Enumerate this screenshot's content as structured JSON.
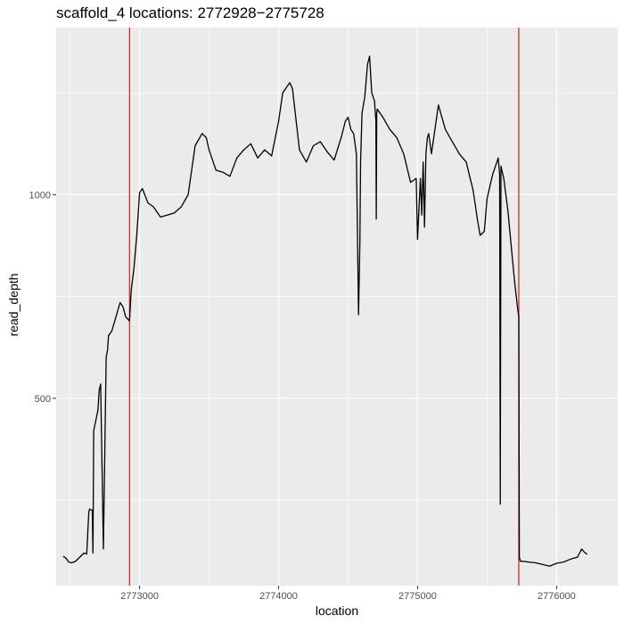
{
  "chart_data": {
    "type": "line",
    "title": "scaffold_4 locations: 2772928−2775728",
    "xlabel": "location",
    "ylabel": "read_depth",
    "xlim": [
      2772400,
      2776440
    ],
    "ylim": [
      40,
      1410
    ],
    "x_ticks": [
      2773000,
      2774000,
      2775000,
      2776000
    ],
    "x_tick_labels": [
      "2773000",
      "2774000",
      "2775000",
      "2776000"
    ],
    "y_ticks": [
      500,
      1000
    ],
    "y_tick_labels": [
      "500",
      "1000"
    ],
    "grid": true,
    "background": "#ebebeb",
    "line_color": "#000000",
    "vline_color": "#d62728",
    "vlines": [
      2772928,
      2775728
    ],
    "series": [
      {
        "x": [
          2772450,
          2772470,
          2772490,
          2772510,
          2772540,
          2772570,
          2772600,
          2772620,
          2772635,
          2772640,
          2772660,
          2772665,
          2772670,
          2772700,
          2772710,
          2772720,
          2772740,
          2772760,
          2772770,
          2772774,
          2772777,
          2772780,
          2772800,
          2772830,
          2772860,
          2772880,
          2772900,
          2772928,
          2772940,
          2772960,
          2772980,
          2773000,
          2773020,
          2773060,
          2773100,
          2773150,
          2773200,
          2773250,
          2773300,
          2773350,
          2773400,
          2773450,
          2773480,
          2773500,
          2773550,
          2773600,
          2773650,
          2773700,
          2773750,
          2773800,
          2773850,
          2773900,
          2773950,
          2774000,
          2774030,
          2774060,
          2774080,
          2774100,
          2774150,
          2774200,
          2774250,
          2774300,
          2774350,
          2774400,
          2774450,
          2774480,
          2774500,
          2774520,
          2774540,
          2774560,
          2774575,
          2774585,
          2774590,
          2774600,
          2774620,
          2774640,
          2774655,
          2774670,
          2774690,
          2774700,
          2774703,
          2774706,
          2774710,
          2774750,
          2774800,
          2774850,
          2774900,
          2774950,
          2774990,
          2775000,
          2775020,
          2775030,
          2775040,
          2775050,
          2775060,
          2775070,
          2775080,
          2775100,
          2775150,
          2775200,
          2775250,
          2775300,
          2775350,
          2775400,
          2775430,
          2775450,
          2775480,
          2775500,
          2775520,
          2775540,
          2775560,
          2775580,
          2775590,
          2775595,
          2775600,
          2775620,
          2775650,
          2775680,
          2775700,
          2775720,
          2775728,
          2775732,
          2775740,
          2775760,
          2775800,
          2775850,
          2775900,
          2775950,
          2776000,
          2776050,
          2776100,
          2776150,
          2776180,
          2776200,
          2776220
        ],
        "y": [
          112,
          108,
          98,
          96,
          100,
          110,
          120,
          118,
          220,
          228,
          225,
          120,
          420,
          470,
          520,
          535,
          130,
          600,
          620,
          640,
          655,
          655,
          665,
          700,
          735,
          725,
          700,
          690,
          765,
          820,
          900,
          1005,
          1015,
          980,
          970,
          945,
          950,
          955,
          970,
          1000,
          1120,
          1150,
          1140,
          1110,
          1060,
          1055,
          1045,
          1090,
          1110,
          1125,
          1090,
          1110,
          1095,
          1180,
          1250,
          1265,
          1275,
          1260,
          1110,
          1080,
          1120,
          1130,
          1105,
          1085,
          1140,
          1180,
          1190,
          1160,
          1150,
          1100,
          705,
          880,
          1080,
          1200,
          1240,
          1320,
          1340,
          1250,
          1230,
          1180,
          940,
          1200,
          1210,
          1190,
          1160,
          1140,
          1100,
          1030,
          1040,
          890,
          1040,
          950,
          1080,
          920,
          1100,
          1140,
          1150,
          1100,
          1220,
          1160,
          1130,
          1100,
          1080,
          1010,
          940,
          900,
          910,
          990,
          1020,
          1050,
          1070,
          1090,
          1050,
          240,
          1070,
          1040,
          960,
          850,
          780,
          720,
          700,
          110,
          100,
          100,
          98,
          96,
          92,
          88,
          95,
          98,
          105,
          110,
          130,
          122,
          117
        ]
      }
    ]
  }
}
